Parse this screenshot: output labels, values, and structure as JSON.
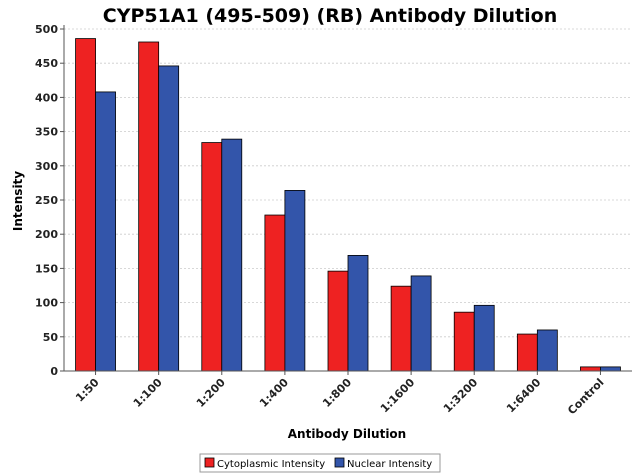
{
  "chart_data": {
    "type": "bar",
    "title": "CYP51A1 (495-509) (RB) Antibody Dilution",
    "xlabel": "Antibody Dilution",
    "ylabel": "Intensity",
    "categories": [
      "1:50",
      "1:100",
      "1:200",
      "1:400",
      "1:800",
      "1:1600",
      "1:3200",
      "1:6400",
      "Control"
    ],
    "series": [
      {
        "name": "Cytoplasmic Intensity",
        "color": "#ee2222",
        "values": [
          486,
          481,
          334,
          228,
          146,
          124,
          86,
          54,
          6
        ]
      },
      {
        "name": "Nuclear Intensity",
        "color": "#3355aa",
        "values": [
          408,
          446,
          339,
          264,
          169,
          139,
          96,
          60,
          6
        ]
      }
    ],
    "ylim": [
      0,
      500
    ],
    "yticks": [
      0,
      50,
      100,
      150,
      200,
      250,
      300,
      350,
      400,
      450,
      500
    ],
    "grid": true,
    "legend_position": "bottom"
  }
}
